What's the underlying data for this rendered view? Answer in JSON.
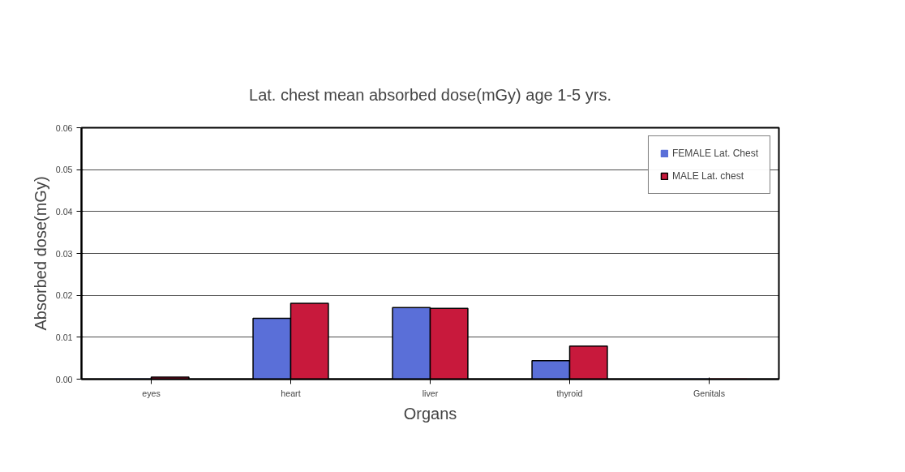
{
  "chart_data": {
    "type": "bar",
    "title": "Lat. chest mean absorbed dose(mGy) age 1-5 yrs.",
    "xlabel": "Organs",
    "ylabel": "Absorbed dose(mGy)",
    "categories": [
      "eyes",
      "heart",
      "liver",
      "thyroid",
      "Genitals"
    ],
    "series": [
      {
        "name": "FEMALE Lat. Chest",
        "color": "#5a6fd8",
        "values": [
          0,
          0.0145,
          0.0171,
          0.0044,
          0
        ]
      },
      {
        "name": "MALE Lat. chest",
        "color": "#c8193c",
        "values": [
          0.0005,
          0.0181,
          0.0169,
          0.0079,
          0
        ]
      }
    ],
    "ylim": [
      0,
      0.06
    ],
    "yticks": [
      {
        "value": 0,
        "label": "0.00"
      },
      {
        "value": 0.01,
        "label": "0.01"
      },
      {
        "value": 0.02,
        "label": "0.02"
      },
      {
        "value": 0.03,
        "label": "0.03"
      },
      {
        "value": 0.04,
        "label": "0.04"
      },
      {
        "value": 0.05,
        "label": "0.05"
      },
      {
        "value": 0.06,
        "label": "0.06"
      }
    ],
    "grid": "y",
    "legend": "top right"
  }
}
